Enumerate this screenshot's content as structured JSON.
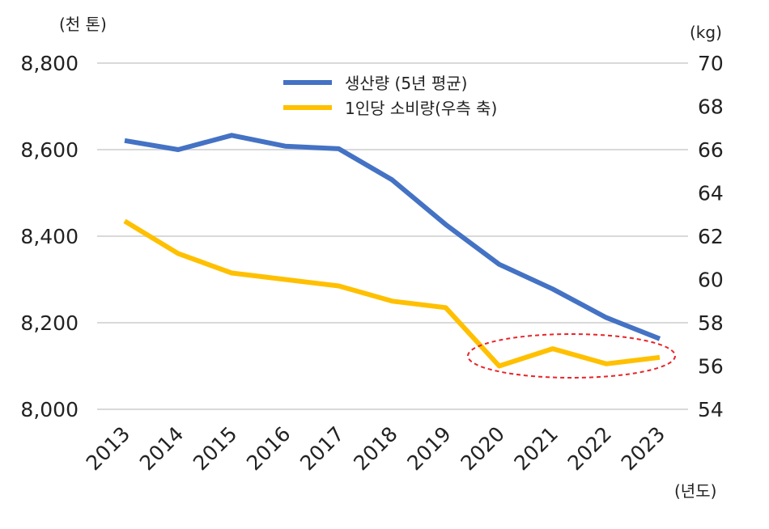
{
  "chart_data": {
    "type": "line",
    "categories": [
      "2013",
      "2014",
      "2015",
      "2016",
      "2017",
      "2018",
      "2019",
      "2020",
      "2021",
      "2022",
      "2023"
    ],
    "y_left": {
      "unit_label": "(천 톤)",
      "range": [
        8000,
        8800
      ],
      "ticks": [
        "8,000",
        "8,200",
        "8,400",
        "8,600",
        "8,800"
      ],
      "tick_values": [
        8000,
        8200,
        8400,
        8600,
        8800
      ]
    },
    "y_right": {
      "unit_label": "(kg)",
      "range": [
        54,
        70
      ],
      "ticks": [
        "54",
        "56",
        "58",
        "60",
        "62",
        "64",
        "66",
        "68",
        "70"
      ],
      "tick_values": [
        54,
        56,
        58,
        60,
        62,
        64,
        66,
        68,
        70
      ]
    },
    "x_unit_label": "(년도)",
    "series": [
      {
        "name": "생산량 (5년 평균)",
        "axis": "left",
        "color": "#4472c4",
        "values": [
          8621,
          8600,
          8633,
          8608,
          8602,
          8530,
          8427,
          8335,
          8278,
          8212,
          8163
        ]
      },
      {
        "name": "1인당 소비량(우측 축)",
        "axis": "right",
        "color": "#ffc000",
        "values": [
          62.7,
          61.2,
          60.3,
          60.0,
          59.7,
          59.0,
          58.7,
          56.0,
          56.8,
          56.1,
          56.4
        ]
      }
    ],
    "annotation": {
      "type": "dashed-ellipse",
      "color": "#e8242a",
      "highlights_categories": [
        "2020",
        "2021",
        "2022",
        "2023"
      ]
    },
    "grid": true,
    "legend_position": "top-center"
  }
}
